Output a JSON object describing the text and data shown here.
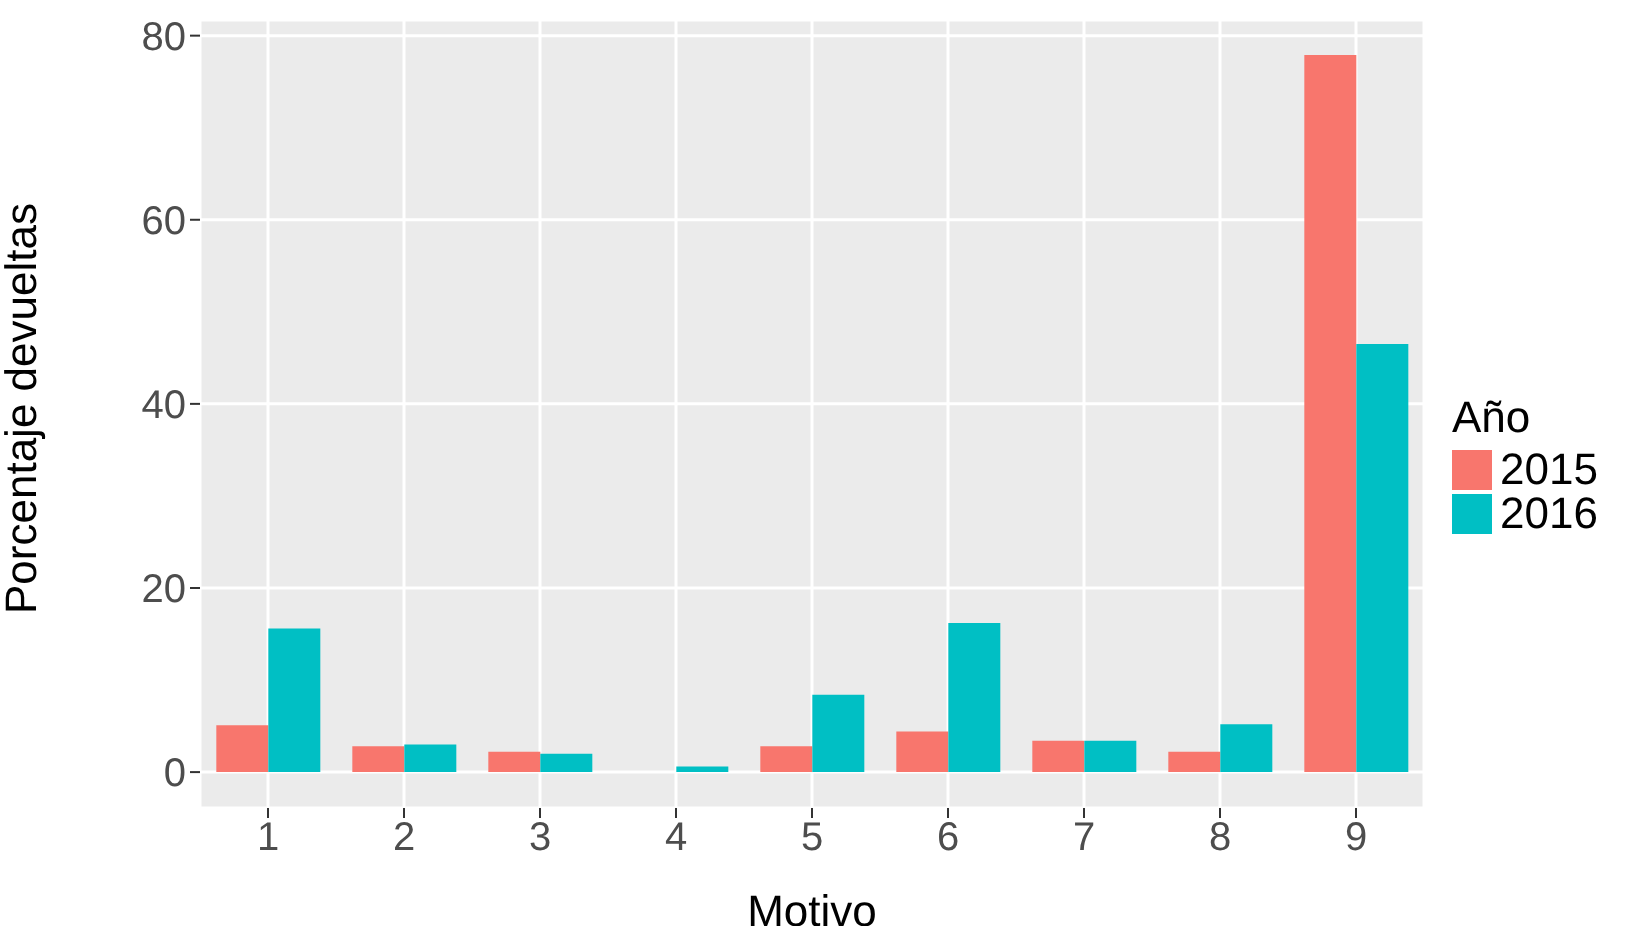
{
  "chart_data": {
    "type": "bar",
    "xlabel": "Motivo",
    "ylabel": "Porcentaje devueltas",
    "legend_title": "Año",
    "categories": [
      "1",
      "2",
      "3",
      "4",
      "5",
      "6",
      "7",
      "8",
      "9"
    ],
    "series": [
      {
        "name": "2015",
        "color": "#f8766d",
        "values": [
          5.1,
          2.8,
          2.2,
          0,
          2.8,
          4.4,
          3.4,
          2.2,
          77.9
        ]
      },
      {
        "name": "2016",
        "color": "#00bfc4",
        "values": [
          15.6,
          3.0,
          2.0,
          0.6,
          8.4,
          16.2,
          3.4,
          5.2,
          46.5
        ]
      }
    ],
    "ylim": [
      -3.9,
      81.7
    ],
    "yticks": [
      0,
      20,
      40,
      60,
      80
    ],
    "grid": true,
    "legend": "right"
  }
}
